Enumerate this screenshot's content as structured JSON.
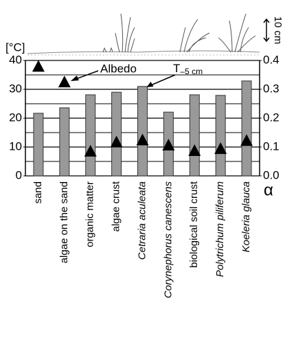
{
  "chart_data": {
    "type": "bar",
    "y_unit_label": "[°C]",
    "y2_unit_label": "α",
    "scale_label": "10 cm",
    "categories": [
      "sand",
      "algae on the sand",
      "organic matter",
      "algae crust",
      "Cetraria aculeata",
      "Corynephorus canescens",
      "biological soil crust",
      "Polytrichum piliferum",
      "Koeleria glauca"
    ],
    "italic": [
      false,
      false,
      false,
      false,
      true,
      true,
      false,
      true,
      true
    ],
    "series": [
      {
        "name": "T",
        "subscript": "–5 cm",
        "color": "#999999",
        "values": [
          21.7,
          23.6,
          28.1,
          29.0,
          31.0,
          22.1,
          28.1,
          27.9,
          32.9
        ]
      },
      {
        "name": "Albedo",
        "color": "#000000",
        "axis": "y2",
        "values": [
          0.38,
          0.326,
          0.086,
          0.118,
          0.125,
          0.107,
          0.088,
          0.095,
          0.123
        ]
      }
    ],
    "ylim": [
      0,
      40
    ],
    "yticks": [
      0,
      10,
      20,
      30,
      40
    ],
    "yminor": [
      5,
      15,
      25,
      35
    ],
    "y2lim": [
      0,
      0.4
    ],
    "y2ticks": [
      {
        "value": 0,
        "label": "0.0"
      },
      0.1,
      0.2,
      0.3,
      0.4
    ],
    "grid": true
  }
}
